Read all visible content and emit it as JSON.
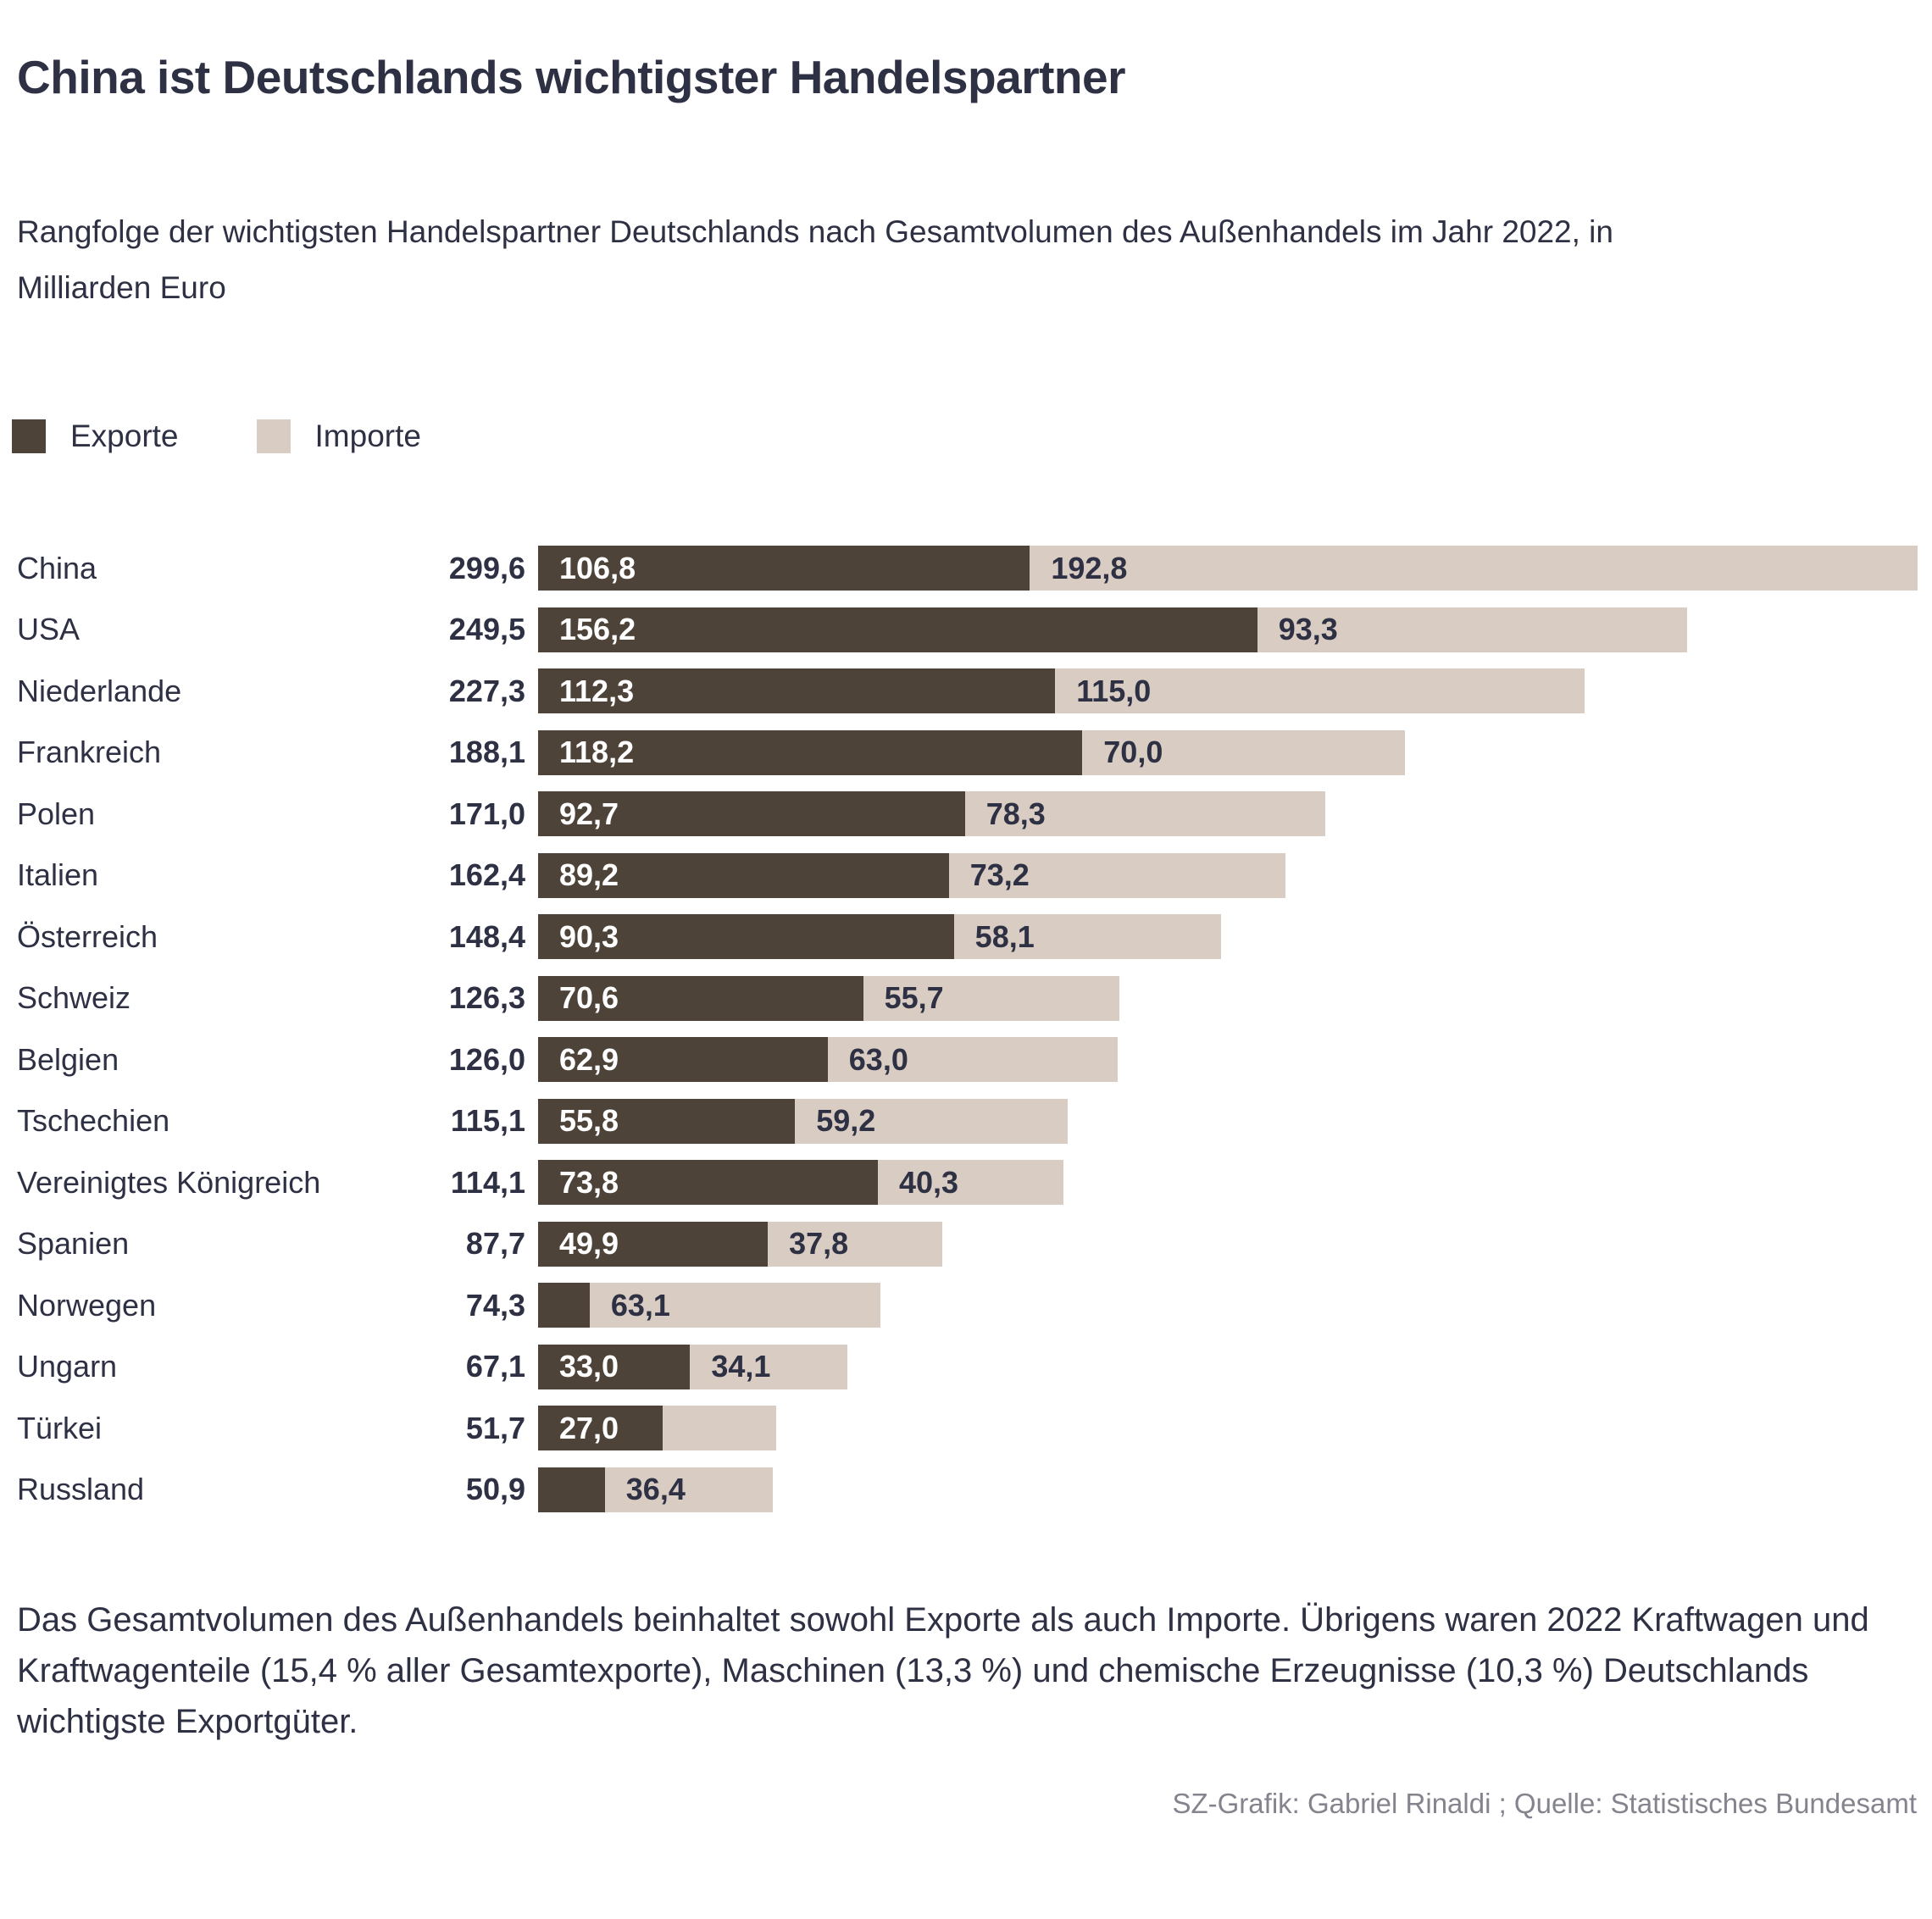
{
  "title": "China ist Deutschlands wichtigster Handelspartner",
  "subtitle": "Rangfolge der wichtigsten Handelspartner Deutschlands nach Gesamtvolumen des Außenhandels im Jahr 2022, in Milliarden Euro",
  "legend": {
    "export_label": "Exporte",
    "import_label": "Importe"
  },
  "colors": {
    "export": "#4e4338",
    "import": "#d9ccc2",
    "text": "#2e3044",
    "credit": "#84848e"
  },
  "chart_data": {
    "type": "bar",
    "orientation": "horizontal",
    "stacked": true,
    "unit": "Milliarden Euro",
    "x_max": 299.6,
    "series_names": [
      "Exporte",
      "Importe"
    ],
    "rows": [
      {
        "country": "China",
        "total": "299,6",
        "export": 106.8,
        "import": 192.8,
        "export_label": "106,8",
        "import_label": "192,8"
      },
      {
        "country": "USA",
        "total": "249,5",
        "export": 156.2,
        "import": 93.3,
        "export_label": "156,2",
        "import_label": "93,3"
      },
      {
        "country": "Niederlande",
        "total": "227,3",
        "export": 112.3,
        "import": 115.0,
        "export_label": "112,3",
        "import_label": "115,0"
      },
      {
        "country": "Frankreich",
        "total": "188,1",
        "export": 118.2,
        "import": 70.0,
        "export_label": "118,2",
        "import_label": "70,0"
      },
      {
        "country": "Polen",
        "total": "171,0",
        "export": 92.7,
        "import": 78.3,
        "export_label": "92,7",
        "import_label": "78,3"
      },
      {
        "country": "Italien",
        "total": "162,4",
        "export": 89.2,
        "import": 73.2,
        "export_label": "89,2",
        "import_label": "73,2"
      },
      {
        "country": "Österreich",
        "total": "148,4",
        "export": 90.3,
        "import": 58.1,
        "export_label": "90,3",
        "import_label": "58,1"
      },
      {
        "country": "Schweiz",
        "total": "126,3",
        "export": 70.6,
        "import": 55.7,
        "export_label": "70,6",
        "import_label": "55,7"
      },
      {
        "country": "Belgien",
        "total": "126,0",
        "export": 62.9,
        "import": 63.0,
        "export_label": "62,9",
        "import_label": "63,0"
      },
      {
        "country": "Tschechien",
        "total": "115,1",
        "export": 55.8,
        "import": 59.2,
        "export_label": "55,8",
        "import_label": "59,2"
      },
      {
        "country": "Vereinigtes Königreich",
        "total": "114,1",
        "export": 73.8,
        "import": 40.3,
        "export_label": "73,8",
        "import_label": "40,3"
      },
      {
        "country": "Spanien",
        "total": "87,7",
        "export": 49.9,
        "import": 37.8,
        "export_label": "49,9",
        "import_label": "37,8"
      },
      {
        "country": "Norwegen",
        "total": "74,3",
        "export": 11.2,
        "import": 63.1,
        "export_label": null,
        "import_label": "63,1"
      },
      {
        "country": "Ungarn",
        "total": "67,1",
        "export": 33.0,
        "import": 34.1,
        "export_label": "33,0",
        "import_label": "34,1"
      },
      {
        "country": "Türkei",
        "total": "51,7",
        "export": 27.0,
        "import": 24.7,
        "export_label": "27,0",
        "import_label": null
      },
      {
        "country": "Russland",
        "total": "50,9",
        "export": 14.5,
        "import": 36.4,
        "export_label": null,
        "import_label": "36,4"
      }
    ]
  },
  "footnote": "Das Gesamtvolumen des Außenhandels beinhaltet sowohl Exporte als auch Importe. Übrigens waren 2022 Kraftwagen und Kraftwagenteile (15,4 % aller Gesamtexporte), Maschinen (13,3 %) und chemische Erzeugnisse (10,3 %) Deutschlands wichtigste Exportgüter.",
  "credit": "SZ-Grafik: Gabriel Rinaldi ; Quelle: Statistisches Bundesamt"
}
